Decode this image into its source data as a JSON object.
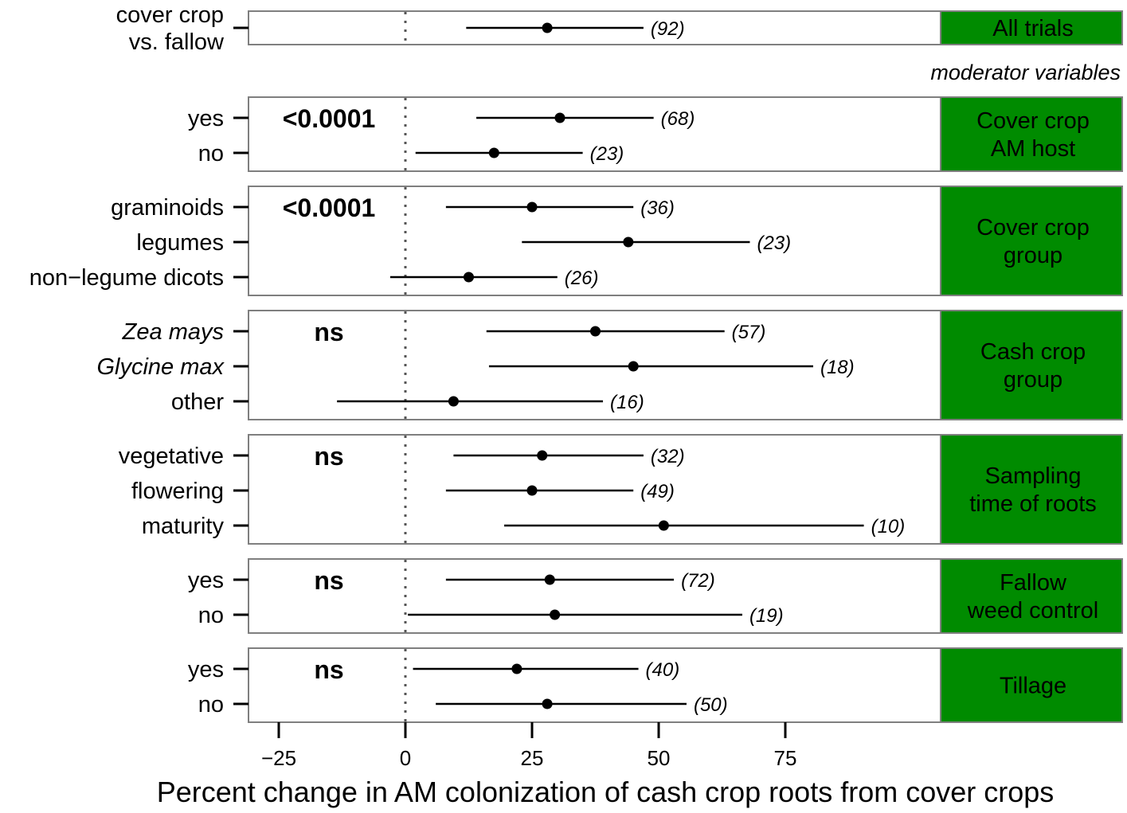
{
  "chart_data": {
    "type": "forest",
    "xlabel": "Percent change in AM colonization of cash crop roots from cover crops",
    "xlim": [
      -31,
      106
    ],
    "xticks": [
      -25,
      0,
      25,
      50,
      75
    ],
    "xtick_labels": [
      "−25",
      "0",
      "25",
      "50",
      "75"
    ],
    "reference_line": 0,
    "subheading": "moderator variables",
    "panel_color": "#008B00",
    "panels": [
      {
        "strip": [
          "All trials"
        ],
        "pvalue": "",
        "rows": [
          {
            "label": [
              "cover crop",
              "vs. fallow"
            ],
            "italic": false,
            "estimate": 28,
            "lower": 12,
            "upper": 47,
            "n": "(92)"
          }
        ]
      },
      {
        "strip": [
          "Cover crop",
          "AM host"
        ],
        "pvalue": "<0.0001",
        "rows": [
          {
            "label": [
              "yes"
            ],
            "italic": false,
            "estimate": 30.5,
            "lower": 14,
            "upper": 49,
            "n": "(68)"
          },
          {
            "label": [
              "no"
            ],
            "italic": false,
            "estimate": 17.5,
            "lower": 2,
            "upper": 35,
            "n": "(23)"
          }
        ]
      },
      {
        "strip": [
          "Cover crop",
          "group"
        ],
        "pvalue": "<0.0001",
        "rows": [
          {
            "label": [
              "graminoids"
            ],
            "italic": false,
            "estimate": 25,
            "lower": 8,
            "upper": 45,
            "n": "(36)"
          },
          {
            "label": [
              "legumes"
            ],
            "italic": false,
            "estimate": 44,
            "lower": 23,
            "upper": 68,
            "n": "(23)"
          },
          {
            "label": [
              "non−legume dicots"
            ],
            "italic": false,
            "estimate": 12.5,
            "lower": -3,
            "upper": 30,
            "n": "(26)"
          }
        ]
      },
      {
        "strip": [
          "Cash crop",
          "group"
        ],
        "pvalue": "ns",
        "rows": [
          {
            "label": [
              "Zea mays"
            ],
            "italic": true,
            "estimate": 37.5,
            "lower": 16,
            "upper": 63,
            "n": "(57)"
          },
          {
            "label": [
              "Glycine max"
            ],
            "italic": true,
            "estimate": 45,
            "lower": 16.5,
            "upper": 80.5,
            "n": "(18)"
          },
          {
            "label": [
              "other"
            ],
            "italic": false,
            "estimate": 9.5,
            "lower": -13.5,
            "upper": 39,
            "n": "(16)"
          }
        ]
      },
      {
        "strip": [
          "Sampling",
          "time of roots"
        ],
        "pvalue": "ns",
        "rows": [
          {
            "label": [
              "vegetative"
            ],
            "italic": false,
            "estimate": 27,
            "lower": 9.5,
            "upper": 47,
            "n": "(32)"
          },
          {
            "label": [
              "flowering"
            ],
            "italic": false,
            "estimate": 25,
            "lower": 8,
            "upper": 45,
            "n": "(49)"
          },
          {
            "label": [
              "maturity"
            ],
            "italic": false,
            "estimate": 51,
            "lower": 19.5,
            "upper": 90.5,
            "n": "(10)"
          }
        ]
      },
      {
        "strip": [
          "Fallow",
          "weed control"
        ],
        "pvalue": "ns",
        "rows": [
          {
            "label": [
              "yes"
            ],
            "italic": false,
            "estimate": 28.5,
            "lower": 8,
            "upper": 53,
            "n": "(72)"
          },
          {
            "label": [
              "no"
            ],
            "italic": false,
            "estimate": 29.5,
            "lower": 0.5,
            "upper": 66.5,
            "n": "(19)"
          }
        ]
      },
      {
        "strip": [
          "Tillage"
        ],
        "pvalue": "ns",
        "rows": [
          {
            "label": [
              "yes"
            ],
            "italic": false,
            "estimate": 22,
            "lower": 1.5,
            "upper": 46,
            "n": "(40)"
          },
          {
            "label": [
              "no"
            ],
            "italic": false,
            "estimate": 28,
            "lower": 6,
            "upper": 55.5,
            "n": "(50)"
          }
        ]
      }
    ]
  }
}
